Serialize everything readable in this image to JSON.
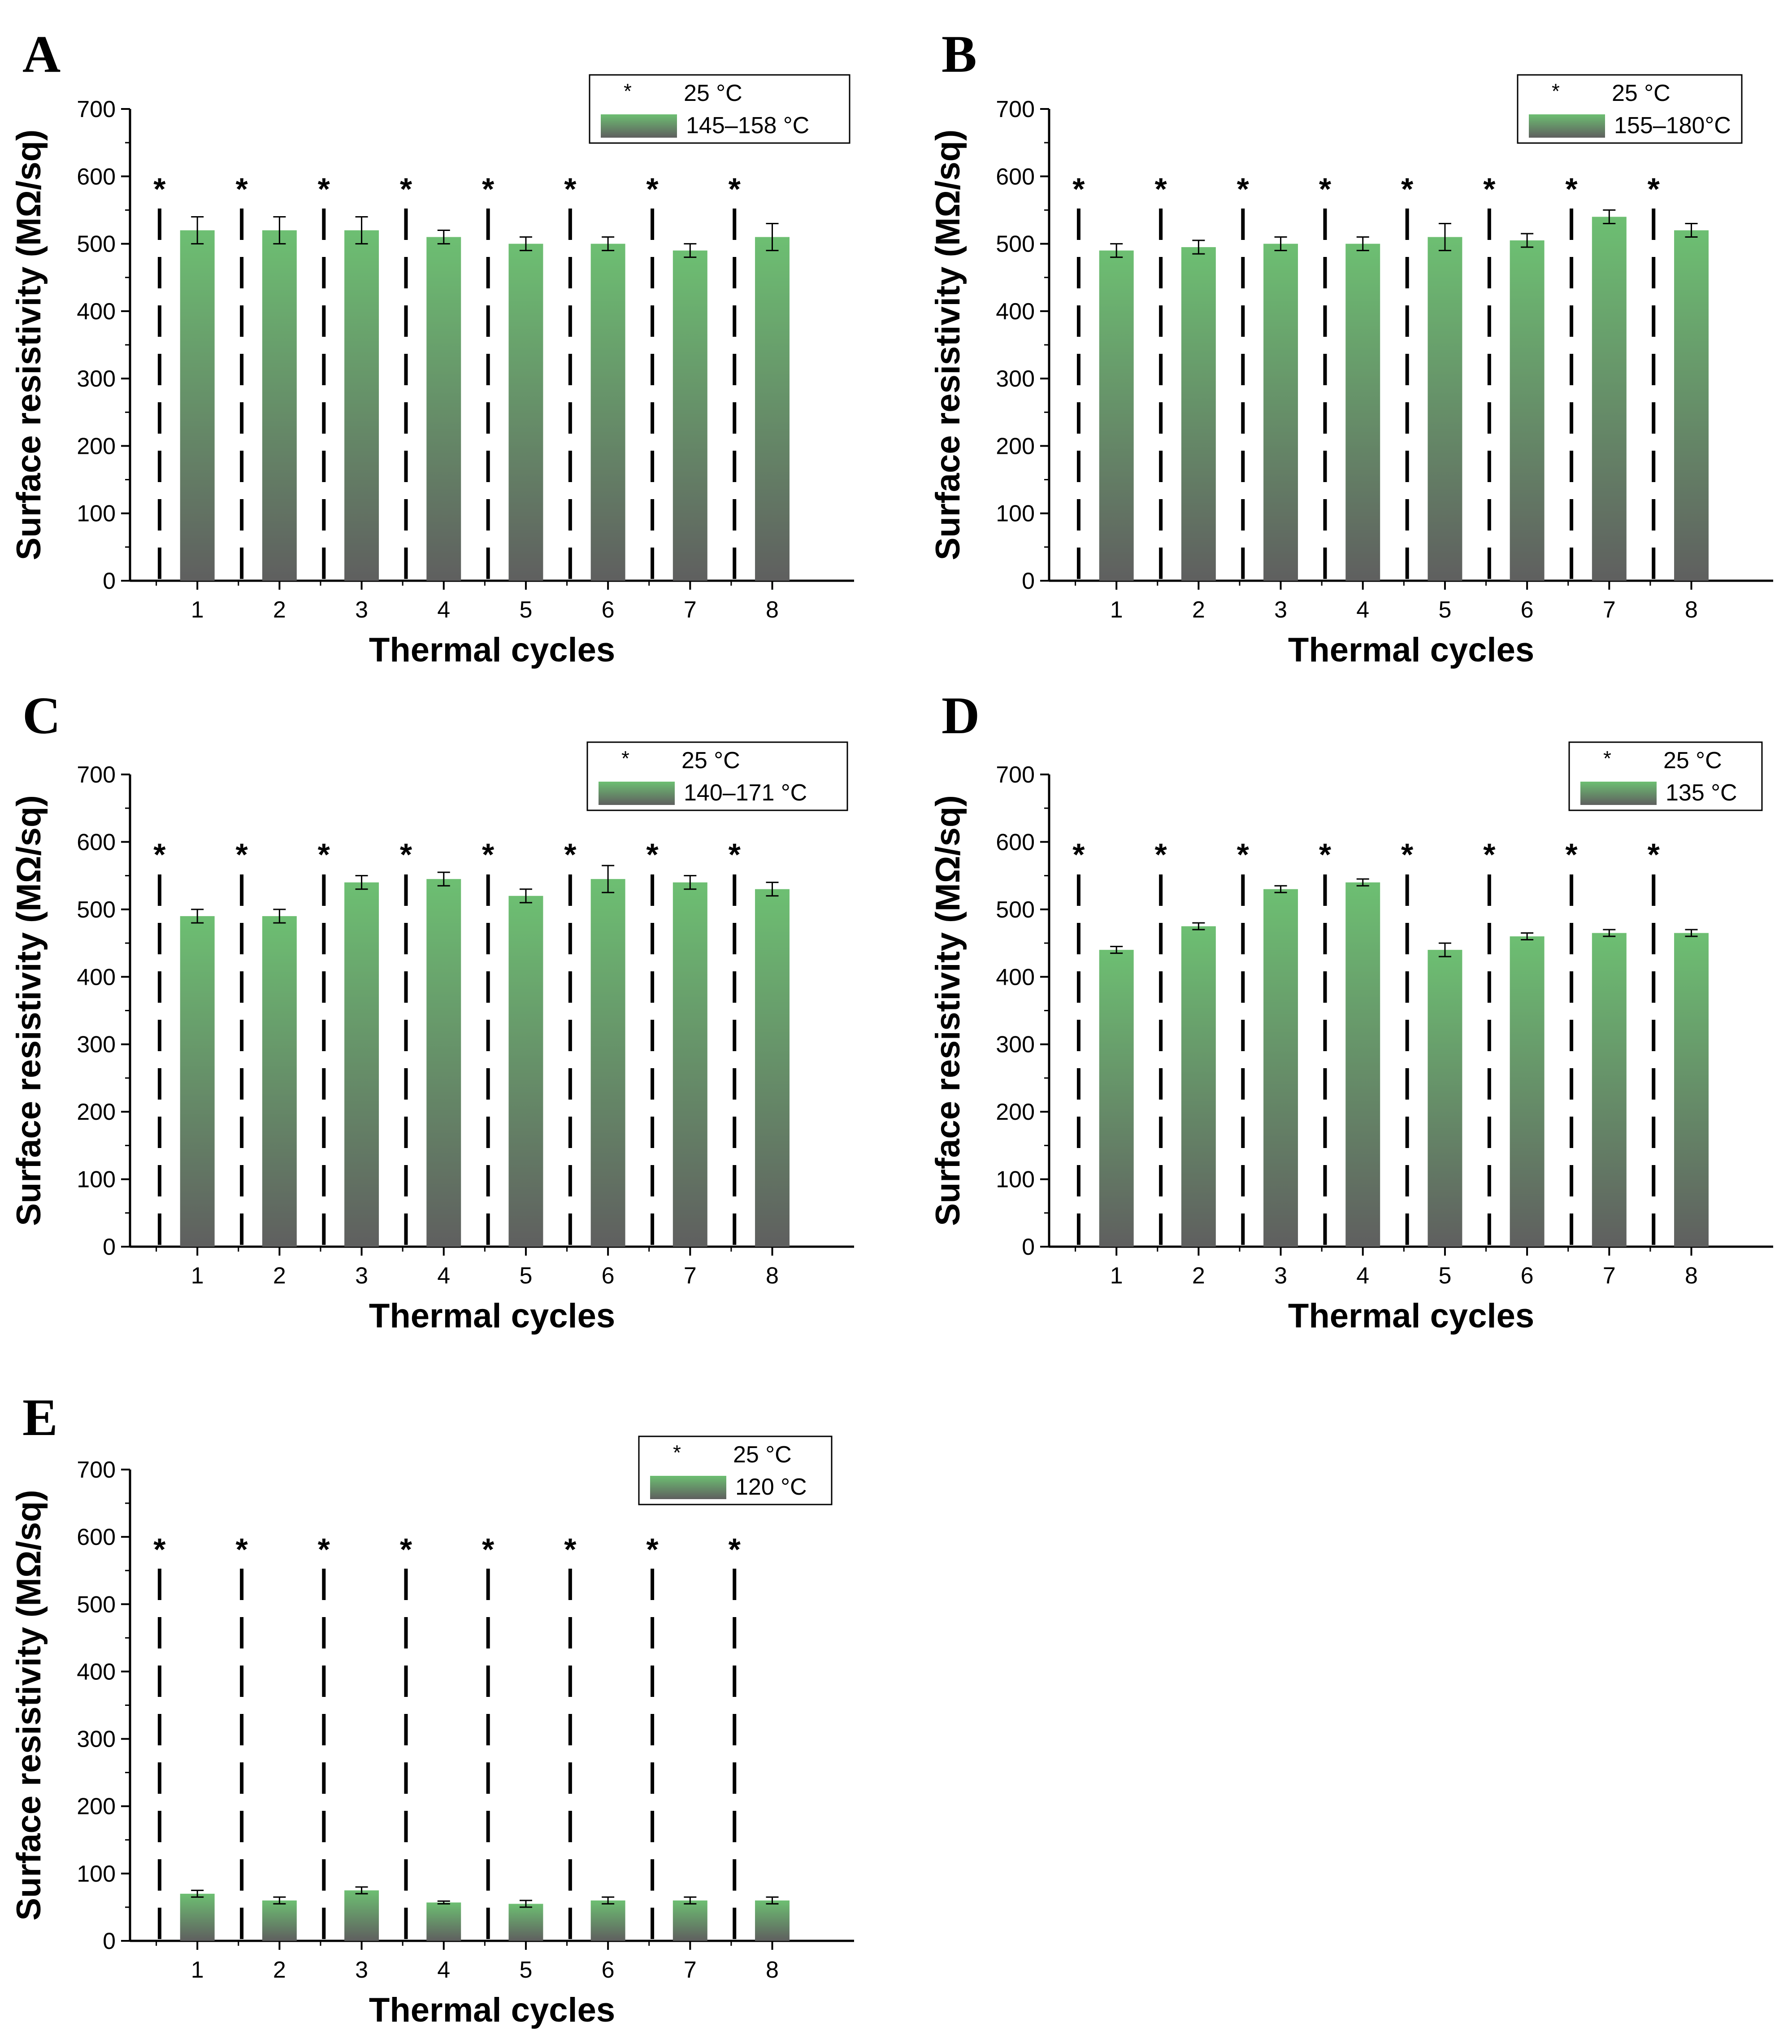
{
  "colors": {
    "bar_top": "#6dbf72",
    "bar_bottom": "#5f5f5f",
    "dash": "#000000"
  },
  "chart_data": [
    {
      "panel": "A",
      "type": "bar",
      "xlabel": "Thermal cycles",
      "ylabel": "Surface resistivity (MΩ/sq)",
      "categories": [
        "1",
        "2",
        "3",
        "4",
        "5",
        "6",
        "7",
        "8"
      ],
      "ylim": [
        0,
        700
      ],
      "yticks": [
        "0",
        "100",
        "200",
        "300",
        "400",
        "500",
        "600",
        "700"
      ],
      "legend": {
        "placement": "top-right",
        "entries": [
          "25 °C",
          "145–158 °C"
        ],
        "marker": "*"
      },
      "series": [
        {
          "name": "25 °C",
          "values": [
            560,
            560,
            560,
            560,
            560,
            560,
            560,
            560
          ]
        },
        {
          "name": "145–158 °C",
          "values": [
            520,
            520,
            520,
            510,
            500,
            500,
            490,
            510
          ],
          "errors": [
            20,
            20,
            20,
            10,
            10,
            10,
            10,
            20
          ]
        }
      ],
      "annotations": [
        "*",
        "*",
        "*",
        "*",
        "*",
        "*",
        "*",
        "*"
      ]
    },
    {
      "panel": "B",
      "type": "bar",
      "xlabel": "Thermal cycles",
      "ylabel": "Surface resistivity (MΩ/sq)",
      "categories": [
        "1",
        "2",
        "3",
        "4",
        "5",
        "6",
        "7",
        "8"
      ],
      "ylim": [
        0,
        700
      ],
      "yticks": [
        "0",
        "100",
        "200",
        "300",
        "400",
        "500",
        "600",
        "700"
      ],
      "legend": {
        "placement": "top-right",
        "entries": [
          "25 °C",
          "155–180°C"
        ],
        "marker": "*"
      },
      "series": [
        {
          "name": "25 °C",
          "values": [
            560,
            560,
            560,
            560,
            560,
            560,
            560,
            560
          ]
        },
        {
          "name": "155–180°C",
          "values": [
            490,
            495,
            500,
            500,
            510,
            505,
            540,
            520
          ],
          "errors": [
            10,
            10,
            10,
            10,
            20,
            10,
            10,
            10
          ]
        }
      ],
      "annotations": [
        "*",
        "*",
        "*",
        "*",
        "*",
        "*",
        "*",
        "*"
      ]
    },
    {
      "panel": "C",
      "type": "bar",
      "xlabel": "Thermal cycles",
      "ylabel": "Surface resistivity (MΩ/sq)",
      "categories": [
        "1",
        "2",
        "3",
        "4",
        "5",
        "6",
        "7",
        "8"
      ],
      "ylim": [
        0,
        700
      ],
      "yticks": [
        "0",
        "100",
        "200",
        "300",
        "400",
        "500",
        "600",
        "700"
      ],
      "legend": {
        "placement": "top-right",
        "entries": [
          "25 °C",
          "140–171 °C"
        ],
        "marker": "*"
      },
      "series": [
        {
          "name": "25 °C",
          "values": [
            560,
            560,
            560,
            560,
            560,
            560,
            560,
            560
          ]
        },
        {
          "name": "140–171 °C",
          "values": [
            490,
            490,
            540,
            545,
            520,
            545,
            540,
            530
          ],
          "errors": [
            10,
            10,
            10,
            10,
            10,
            20,
            10,
            10
          ]
        }
      ],
      "annotations": [
        "*",
        "*",
        "*",
        "*",
        "*",
        "*",
        "*",
        "*"
      ]
    },
    {
      "panel": "D",
      "type": "bar",
      "xlabel": "Thermal cycles",
      "ylabel": "Surface resistivity (MΩ/sq)",
      "categories": [
        "1",
        "2",
        "3",
        "4",
        "5",
        "6",
        "7",
        "8"
      ],
      "ylim": [
        0,
        700
      ],
      "yticks": [
        "0",
        "100",
        "200",
        "300",
        "400",
        "500",
        "600",
        "700"
      ],
      "legend": {
        "placement": "top-right",
        "entries": [
          "25 °C",
          "135 °C"
        ],
        "marker": "*"
      },
      "series": [
        {
          "name": "25 °C",
          "values": [
            560,
            560,
            560,
            560,
            560,
            560,
            560,
            560
          ]
        },
        {
          "name": "135 °C",
          "values": [
            440,
            475,
            530,
            540,
            440,
            460,
            465,
            465
          ],
          "errors": [
            5,
            5,
            5,
            5,
            10,
            5,
            5,
            5
          ]
        }
      ],
      "annotations": [
        "*",
        "*",
        "*",
        "*",
        "*",
        "*",
        "*",
        "*"
      ]
    },
    {
      "panel": "E",
      "type": "bar",
      "xlabel": "Thermal cycles",
      "ylabel": "Surface resistivity (MΩ/sq)",
      "categories": [
        "1",
        "2",
        "3",
        "4",
        "5",
        "6",
        "7",
        "8"
      ],
      "ylim": [
        0,
        700
      ],
      "yticks": [
        "0",
        "100",
        "200",
        "300",
        "400",
        "500",
        "600",
        "700"
      ],
      "legend": {
        "placement": "top-right",
        "entries": [
          "25 °C",
          "120 °C"
        ],
        "marker": "*"
      },
      "series": [
        {
          "name": "25 °C",
          "values": [
            560,
            560,
            560,
            560,
            560,
            560,
            560,
            560
          ]
        },
        {
          "name": "120 °C",
          "values": [
            70,
            60,
            75,
            57,
            55,
            60,
            60,
            60
          ],
          "errors": [
            5,
            5,
            5,
            2,
            5,
            5,
            5,
            5
          ]
        }
      ],
      "annotations": [
        "*",
        "*",
        "*",
        "*",
        "*",
        "*",
        "*",
        "*"
      ]
    }
  ]
}
